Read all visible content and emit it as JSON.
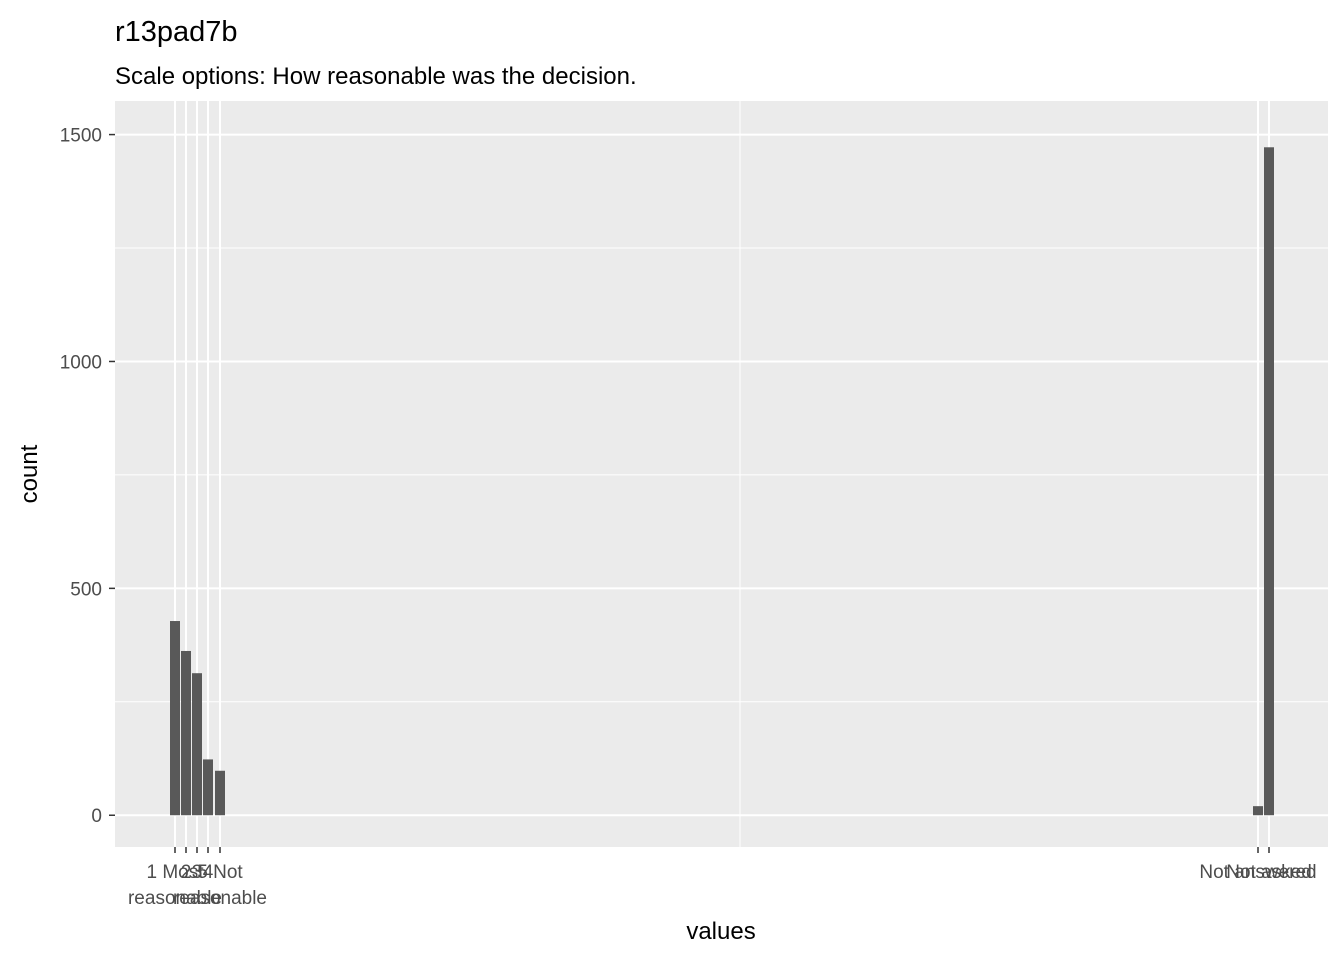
{
  "chart_data": {
    "type": "bar",
    "title": "r13pad7b",
    "subtitle": "Scale options: How reasonable was the decision.",
    "xlabel": "values",
    "ylabel": "count",
    "ylim": [
      -70,
      1574
    ],
    "yticks": [
      0,
      500,
      1000,
      1500
    ],
    "grid": true,
    "categories": [
      "1 Most\nreasonable",
      "2",
      "3",
      "4",
      "5 Not\nreasonable",
      "Not answered",
      "Not asked"
    ],
    "values": [
      428,
      362,
      313,
      123,
      98,
      20,
      1472
    ],
    "colors": {
      "bar": "#595959",
      "panel": "#ebebeb",
      "grid": "#ffffff",
      "tick_text": "#4d4d4d"
    }
  }
}
